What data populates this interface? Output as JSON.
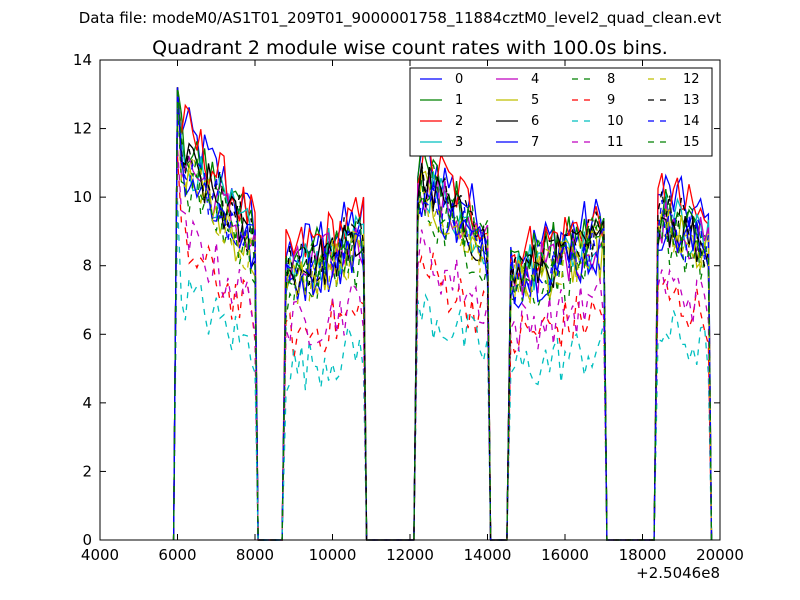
{
  "figure": {
    "suptitle": "Data file: modeM0/AS1T01_209T01_9000001758_11884cztM0_level2_quad_clean.evt"
  },
  "chart_data": {
    "type": "line",
    "title": "Quadrant 2 module wise count rates with 100.0s bins.",
    "xlabel": "",
    "ylabel": "",
    "x_offset_label": "+2.5046e8",
    "xlim": [
      4000,
      20000
    ],
    "ylim": [
      0,
      14
    ],
    "x_ticks": [
      4000,
      6000,
      8000,
      10000,
      12000,
      14000,
      16000,
      18000,
      20000
    ],
    "y_ticks": [
      0,
      2,
      4,
      6,
      8,
      10,
      12,
      14
    ],
    "x_tick_labels": [
      "4000",
      "6000",
      "8000",
      "10000",
      "12000",
      "14000",
      "16000",
      "18000",
      "20000"
    ],
    "y_tick_labels": [
      "0",
      "2",
      "4",
      "6",
      "8",
      "10",
      "12",
      "14"
    ],
    "grid": false,
    "legend_position": "top-right",
    "legend_columns": 4,
    "segments": [
      {
        "x_start": 6000,
        "x_end": 8000,
        "decay": 0.42,
        "amp": 1.25
      },
      {
        "x_start": 8800,
        "x_end": 10800,
        "decay": 0.0,
        "amp": 1.0
      },
      {
        "x_start": 12200,
        "x_end": 14000,
        "decay": 0.3,
        "amp": 1.15
      },
      {
        "x_start": 14600,
        "x_end": 17000,
        "decay": 0.0,
        "amp": 1.0
      },
      {
        "x_start": 18400,
        "x_end": 19700,
        "decay": 0.15,
        "amp": 1.05
      }
    ],
    "series": [
      {
        "name": "0",
        "color": "#0000ff",
        "dash": "solid",
        "level": 9.2
      },
      {
        "name": "1",
        "color": "#008000",
        "dash": "solid",
        "level": 8.9
      },
      {
        "name": "2",
        "color": "#ff0000",
        "dash": "solid",
        "level": 9.2
      },
      {
        "name": "3",
        "color": "#00bfbf",
        "dash": "solid",
        "level": 8.6
      },
      {
        "name": "4",
        "color": "#bf00bf",
        "dash": "solid",
        "level": 8.5
      },
      {
        "name": "5",
        "color": "#bfbf00",
        "dash": "solid",
        "level": 8.2
      },
      {
        "name": "6",
        "color": "#000000",
        "dash": "solid",
        "level": 8.5
      },
      {
        "name": "7",
        "color": "#0000ff",
        "dash": "solid",
        "level": 8.3
      },
      {
        "name": "8",
        "color": "#008000",
        "dash": "dashed",
        "level": 8.0
      },
      {
        "name": "9",
        "color": "#ff0000",
        "dash": "dashed",
        "level": 6.5
      },
      {
        "name": "10",
        "color": "#00bfbf",
        "dash": "dashed",
        "level": 5.5
      },
      {
        "name": "11",
        "color": "#bf00bf",
        "dash": "dashed",
        "level": 6.8
      },
      {
        "name": "12",
        "color": "#bfbf00",
        "dash": "dashed",
        "level": 8.3
      },
      {
        "name": "13",
        "color": "#000000",
        "dash": "dashed",
        "level": 8.7
      },
      {
        "name": "14",
        "color": "#0000ff",
        "dash": "dashed",
        "level": 8.4
      },
      {
        "name": "15",
        "color": "#008000",
        "dash": "dashed",
        "level": 8.6
      }
    ]
  }
}
